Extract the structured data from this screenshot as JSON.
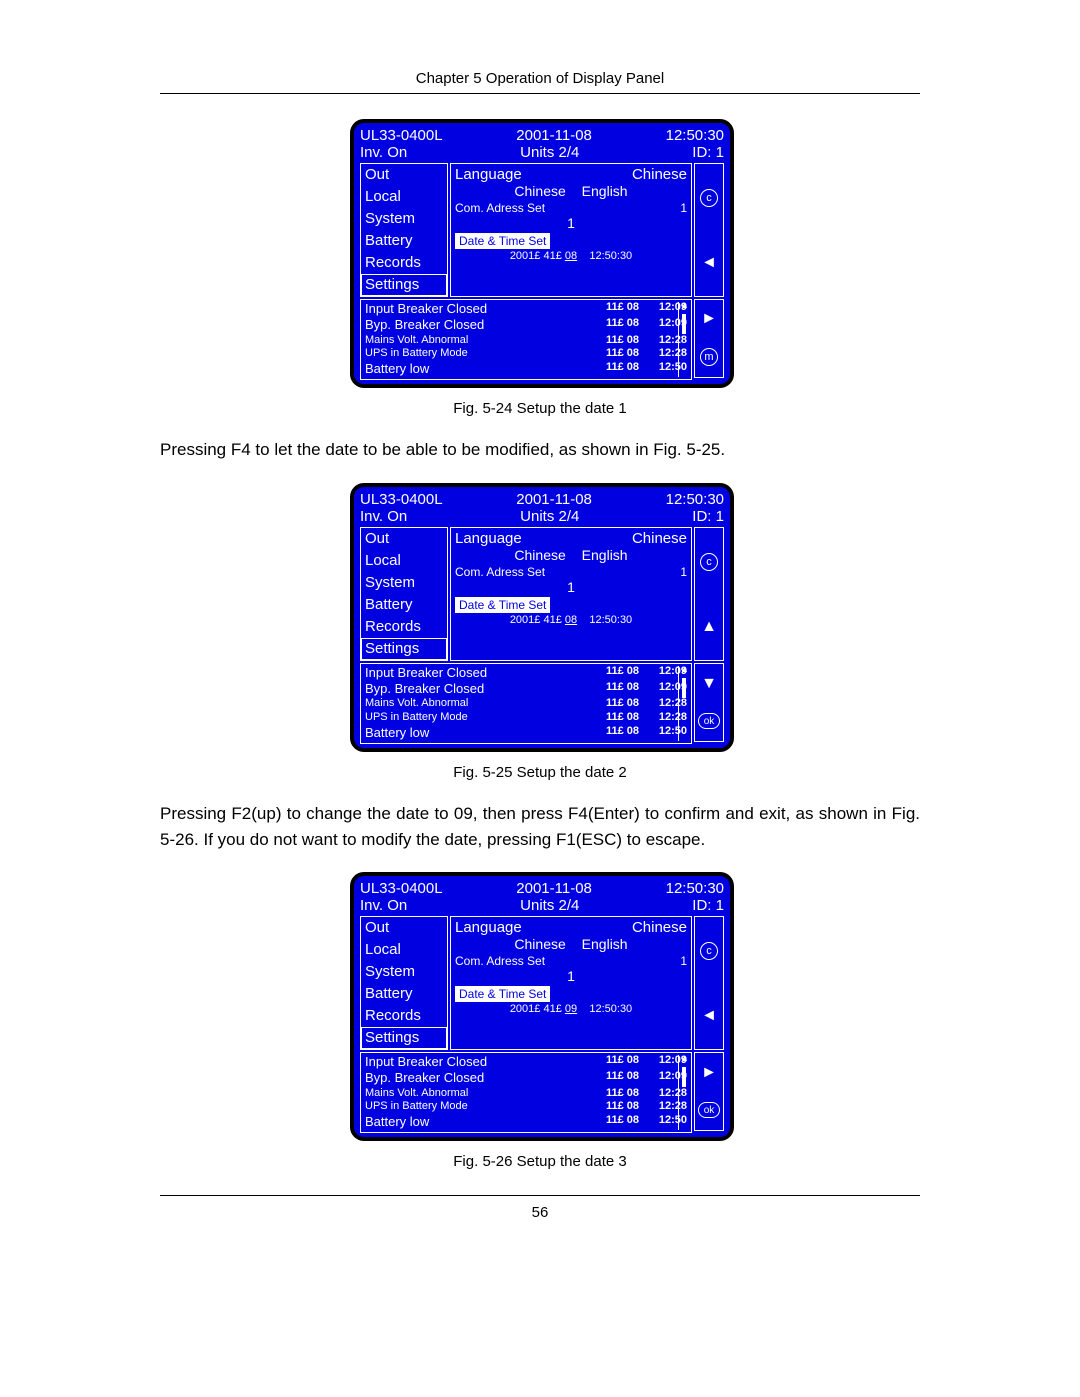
{
  "chapter_header": "Chapter 5  Operation of Display Panel",
  "page_number": "56",
  "para1": "Pressing F4 to let the date to be able to be modified, as shown in Fig. 5-25.",
  "para2": "Pressing F2(up) to change the date to 09, then press F4(Enter) to confirm and exit, as shown in Fig. 5-26. If you do not want to modify the date, pressing F1(ESC) to escape.",
  "fig1_caption": "Fig. 5-24  Setup the date 1",
  "fig2_caption": "Fig. 5-25  Setup the date 2",
  "fig3_caption": "Fig. 5-26  Setup the date 3",
  "panel_common": {
    "model": "UL33-0400L",
    "date": "2001-11-08",
    "time": "12:50:30",
    "status": "Inv. On",
    "units": "Units  2/4",
    "id": "ID: 1",
    "menu": {
      "out": "Out",
      "local": "Local",
      "system": "System",
      "battery": "Battery",
      "records": "Records",
      "settings": "Settings"
    },
    "content": {
      "language_label": "Language",
      "language_value": "Chinese",
      "lang_opt1": "Chinese",
      "lang_opt2": "English",
      "com_addr_label": "Com. Adress Set",
      "com_addr_value": "1",
      "addr_val": "1",
      "dts_label": "Date & Time Set",
      "dts_time": "12:50:30"
    },
    "events": {
      "e1": {
        "l": "Input Breaker Closed",
        "d": "11£ 08",
        "t": "12:09"
      },
      "e2": {
        "l": "Byp. Breaker Closed",
        "d": "11£ 08",
        "t": "12:09"
      },
      "e3": {
        "l": "Mains Volt. Abnormal",
        "d": "11£ 08",
        "t": "12:28"
      },
      "e4": {
        "l": "UPS in Battery Mode",
        "d": "11£ 08",
        "t": "12:28"
      },
      "e5": {
        "l": "Battery low",
        "d": "11£ 08",
        "t": "12:50"
      }
    }
  },
  "panel1": {
    "dts_prefix": "2001£ 41£ ",
    "dts_day": "08",
    "side_top": [
      "c",
      "◄"
    ],
    "side_bot": [
      "►",
      "m"
    ]
  },
  "panel2": {
    "dts_prefix": "2001£ 41£ ",
    "dts_day": "08",
    "side_top": [
      "c",
      "▲"
    ],
    "side_bot": [
      "▼",
      "ok"
    ]
  },
  "panel3": {
    "dts_prefix": "2001£ 41£ ",
    "dts_day": "09",
    "side_top": [
      "c",
      "◄"
    ],
    "side_bot": [
      "►",
      "ok"
    ]
  },
  "colors": {
    "panel_bg": "#0000e0",
    "panel_fg": "#ffffff"
  }
}
